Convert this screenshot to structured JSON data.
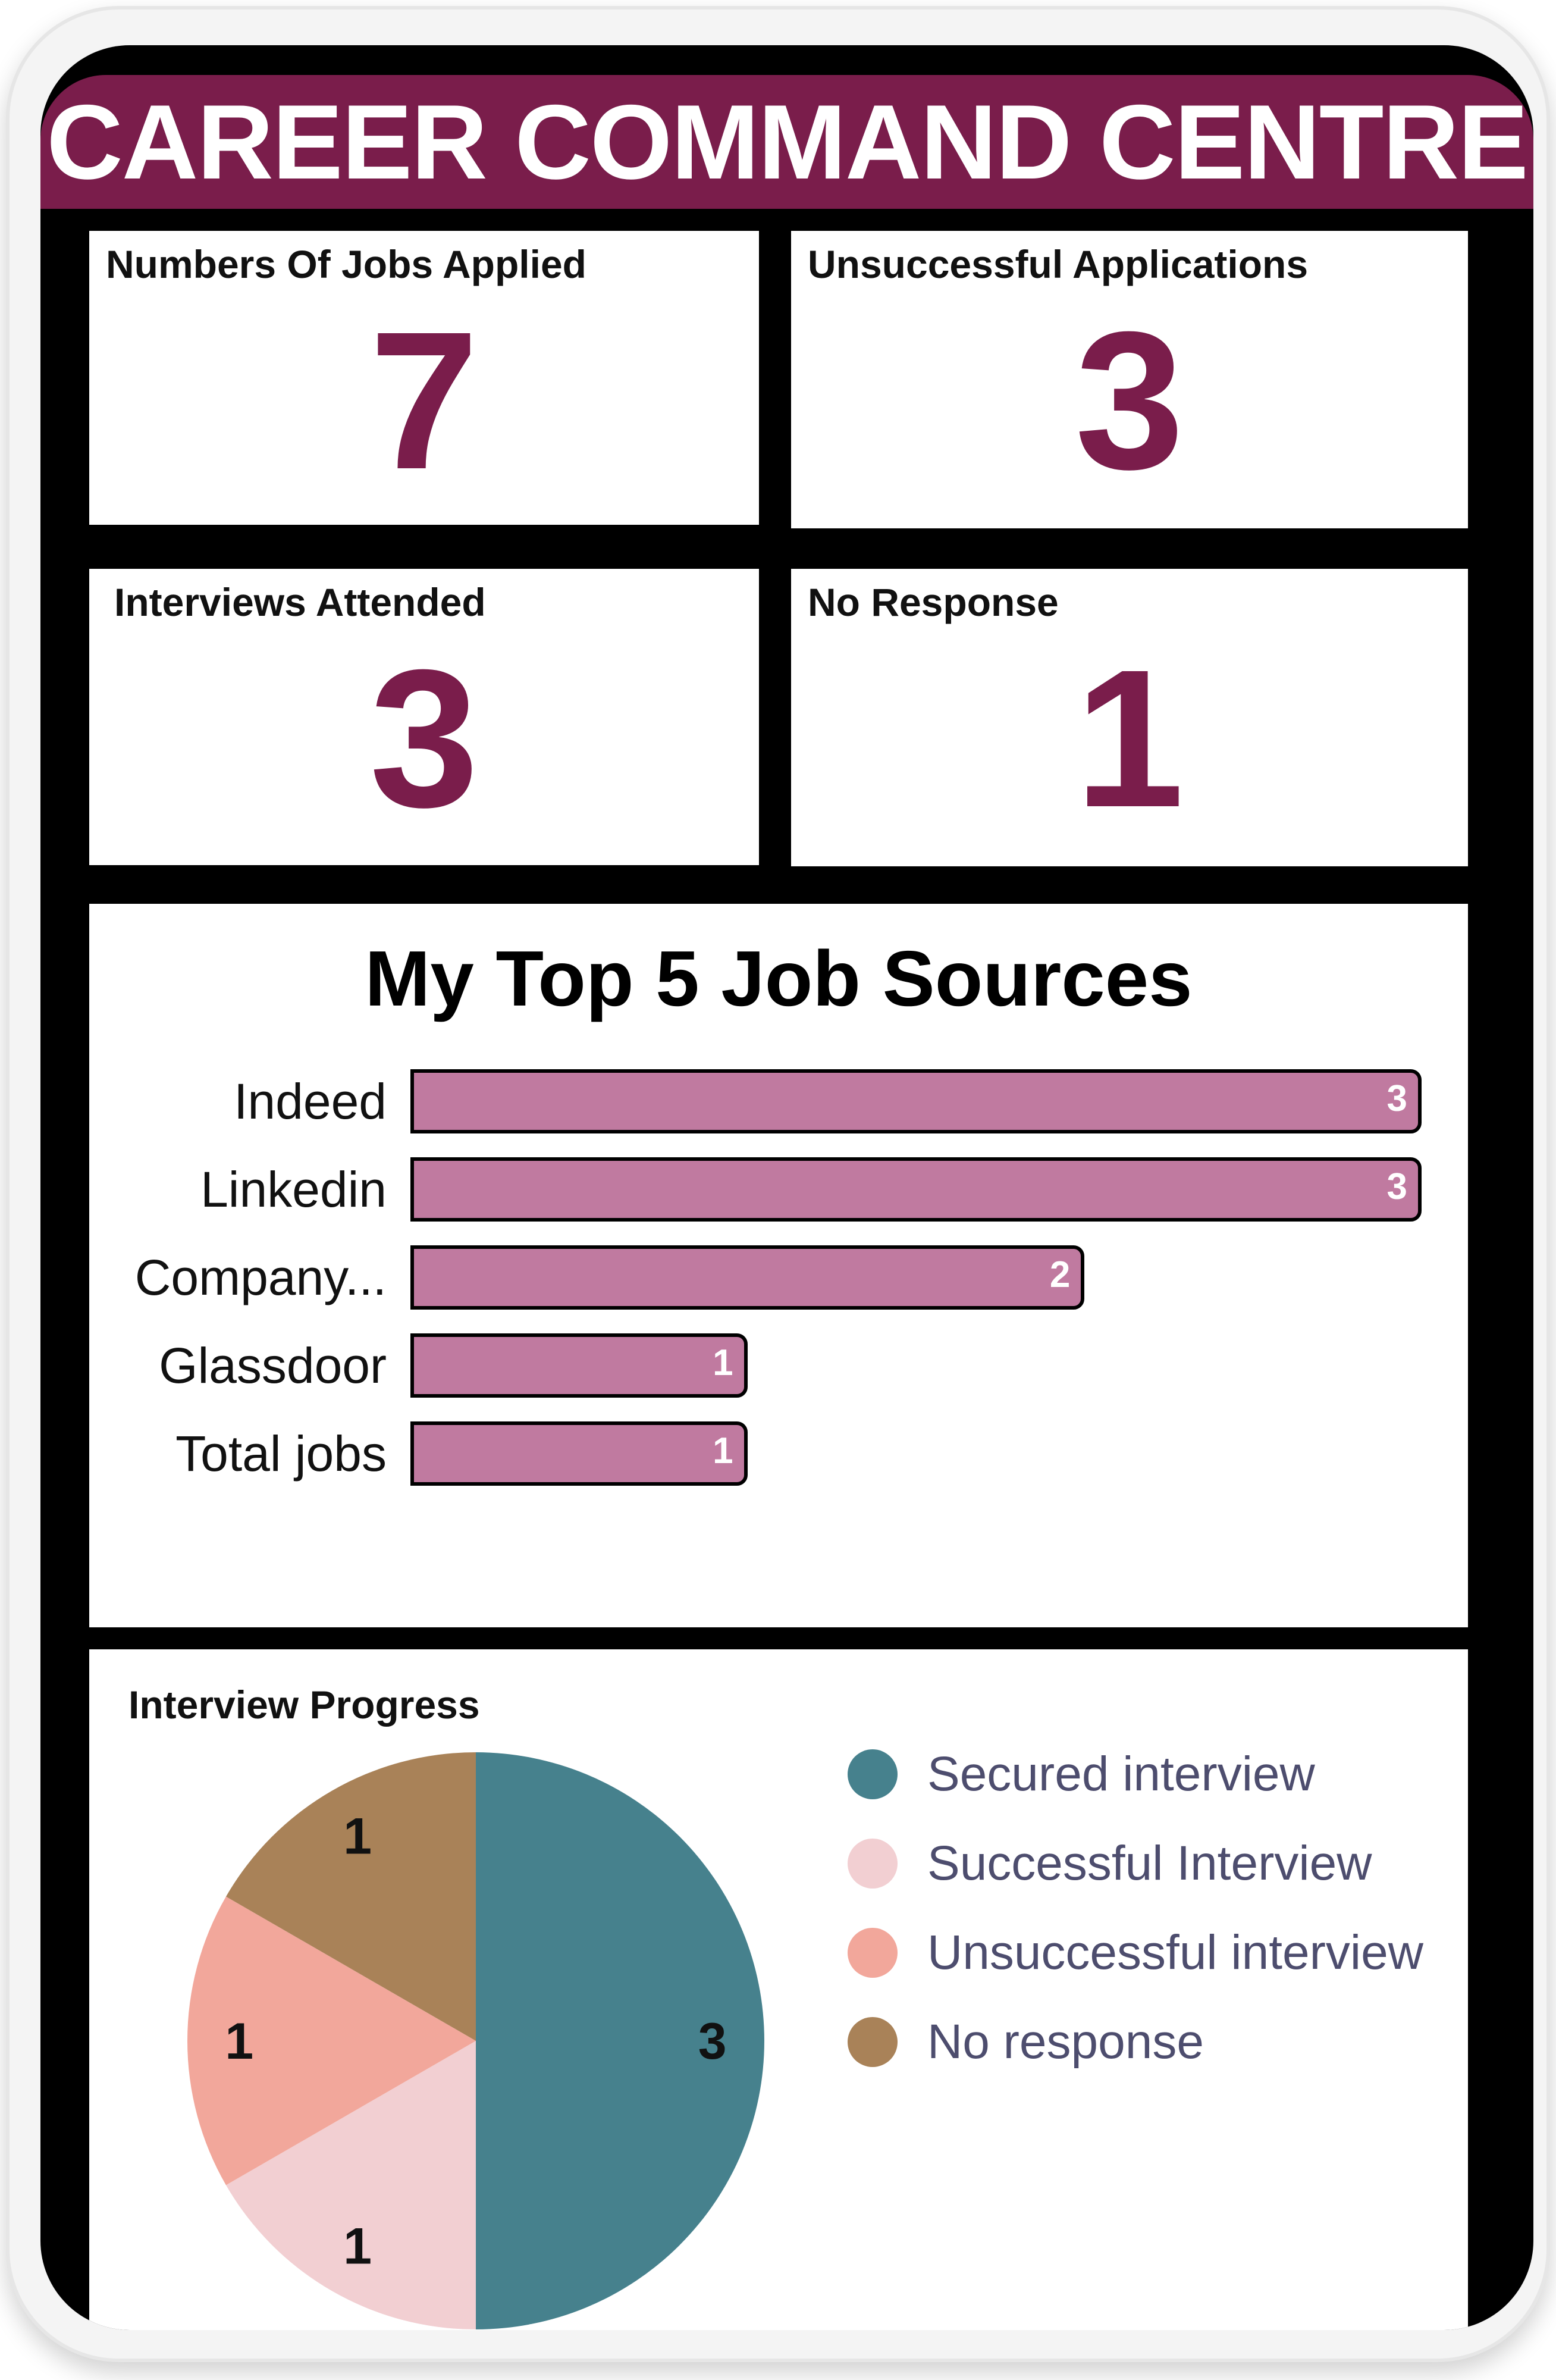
{
  "header": {
    "title": "CAREER COMMAND CENTRE"
  },
  "kpis": {
    "jobs_applied": {
      "label": "Numbers Of Jobs Applied",
      "value": "7"
    },
    "unsuccessful": {
      "label": "Unsuccessful Applications",
      "value": "3"
    },
    "interviews": {
      "label": "Interviews Attended",
      "value": "3"
    },
    "no_response": {
      "label": "No Response",
      "value": "1"
    }
  },
  "colors": {
    "brand": "#7a1d4b",
    "bar": "#c07aa0",
    "secured": "#46818d",
    "successful": "#f2cfd2",
    "unsuccessful": "#f2a79b",
    "noresponse": "#a98258"
  },
  "chart_data": [
    {
      "type": "bar",
      "title": "My Top 5 Job Sources",
      "categories": [
        "Indeed",
        "Linkedin",
        "Company...",
        "Glassdoor",
        "Total jobs"
      ],
      "values": [
        3,
        3,
        2,
        1,
        1
      ],
      "xlim": [
        0,
        3
      ],
      "orientation": "horizontal",
      "grid": false
    },
    {
      "type": "pie",
      "title": "Interview Progress",
      "categories": [
        "Secured interview",
        "Successful Interview",
        "Unsuccessful interview",
        "No response"
      ],
      "values": [
        3,
        1,
        1,
        1
      ],
      "legend": "right"
    }
  ]
}
